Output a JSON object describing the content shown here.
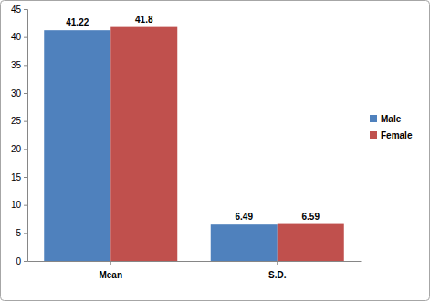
{
  "chart_data": {
    "type": "bar",
    "categories": [
      "Mean",
      "S.D."
    ],
    "series": [
      {
        "name": "Male",
        "color": "#4f81bd",
        "values": [
          41.22,
          6.49
        ]
      },
      {
        "name": "Female",
        "color": "#c0504d",
        "values": [
          41.8,
          6.59
        ]
      }
    ],
    "ylim": [
      0,
      45
    ],
    "yticks": [
      0,
      5,
      10,
      15,
      20,
      25,
      30,
      35,
      40,
      45
    ],
    "grid": false,
    "legend": "right",
    "data_labels": true
  }
}
